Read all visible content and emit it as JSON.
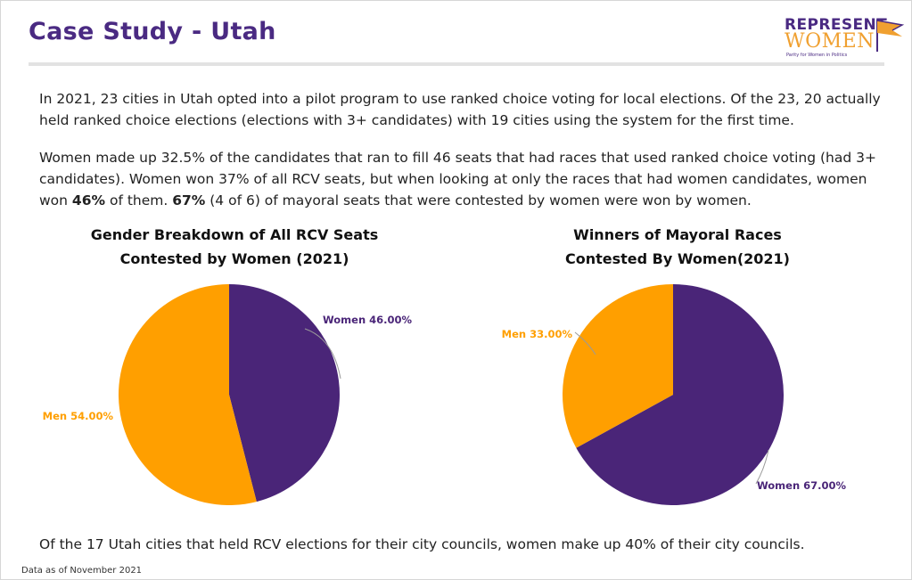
{
  "header": {
    "title": "Case Study - Utah",
    "logo_top": "REPRESENT",
    "logo_bottom": "WOMEN",
    "logo_tagline": "Parity for Women in Politics"
  },
  "body": {
    "paragraph1": "In 2021, 23 cities in Utah opted into a pilot program to use ranked choice voting for local elections. Of the 23, 20 actually held ranked choice elections (elections with 3+ candidates) with 19 cities using the system for the first time.",
    "paragraph2_a": "Women made up 32.5% of the candidates that ran to fill 46 seats that had races that used ranked choice voting (had 3+ candidates). Women won 37% of all RCV seats, but when looking at only the races that had women candidates, women won ",
    "paragraph2_b": "46%",
    "paragraph2_c": " of them. ",
    "paragraph2_d": "67%",
    "paragraph2_e": " (4 of 6) of mayoral seats that were contested by women were won by women.",
    "bottom_text": "Of the 17 Utah cities that held RCV elections for their city councils, women make up 40% of their city councils.",
    "source": "Data as of November 2021"
  },
  "colors": {
    "women": "#4a2578",
    "men": "#ff9f00",
    "title": "#4a2a82"
  },
  "chart_data": [
    {
      "type": "pie",
      "title_line1": "Gender Breakdown of All RCV Seats",
      "title_line2": "Contested by Women (2021)",
      "start_angle_deg": 0,
      "slices": [
        {
          "label": "Women",
          "value": 46.0,
          "display": "Women 46.00%",
          "color": "#4a2578"
        },
        {
          "label": "Men",
          "value": 54.0,
          "display": "Men 54.00%",
          "color": "#ff9f00"
        }
      ]
    },
    {
      "type": "pie",
      "title_line1": "Winners of Mayoral Races",
      "title_line2": "Contested By Women(2021)",
      "start_angle_deg": 0,
      "slices": [
        {
          "label": "Women",
          "value": 67.0,
          "display": "Women 67.00%",
          "color": "#4a2578"
        },
        {
          "label": "Men",
          "value": 33.0,
          "display": "Men 33.00%",
          "color": "#ff9f00"
        }
      ]
    }
  ]
}
